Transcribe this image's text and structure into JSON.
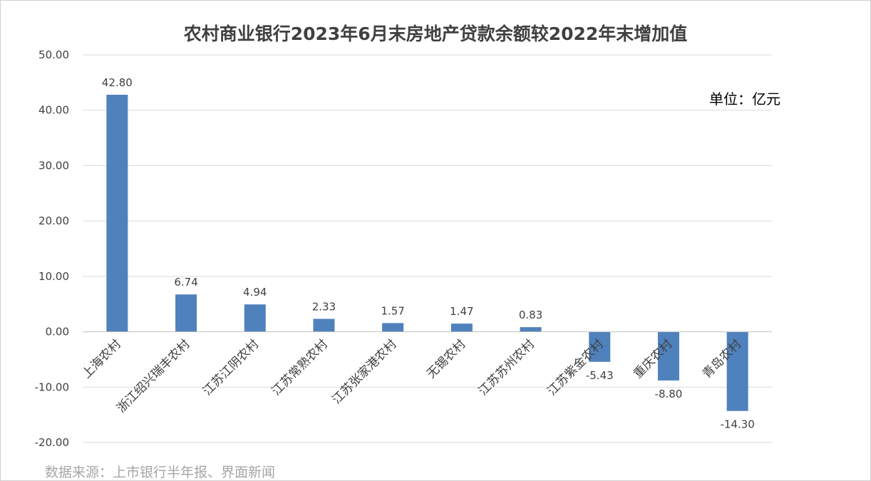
{
  "chart_data": {
    "type": "bar",
    "title": "农村商业银行2023年6月末房地产贷款余额较2022年末增加值",
    "unit": "单位：亿元",
    "source": "数据来源：上市银行半年报、界面新闻",
    "categories": [
      "上海农村",
      "浙江绍兴瑞丰农村",
      "江苏江阴农村",
      "江苏常熟农村",
      "江苏张家港农村",
      "无锡农村",
      "江苏苏州农村",
      "江苏紫金农村",
      "重庆农村",
      "青岛农村"
    ],
    "values": [
      42.8,
      6.74,
      4.94,
      2.33,
      1.57,
      1.47,
      0.83,
      -5.43,
      -8.8,
      -14.3
    ],
    "data_labels": [
      "42.80",
      "6.74",
      "4.94",
      "2.33",
      "1.57",
      "1.47",
      "0.83",
      "-5.43",
      "-8.80",
      "-14.30"
    ],
    "yticks": [
      50,
      40,
      30,
      20,
      10,
      0,
      -10,
      -20
    ],
    "ytick_labels": [
      "50.00",
      "40.00",
      "30.00",
      "20.00",
      "10.00",
      "0.00",
      "-10.00",
      "-20.00"
    ],
    "ylim": [
      -20,
      50
    ],
    "grid": true,
    "bar_color": "#4f81bd"
  }
}
